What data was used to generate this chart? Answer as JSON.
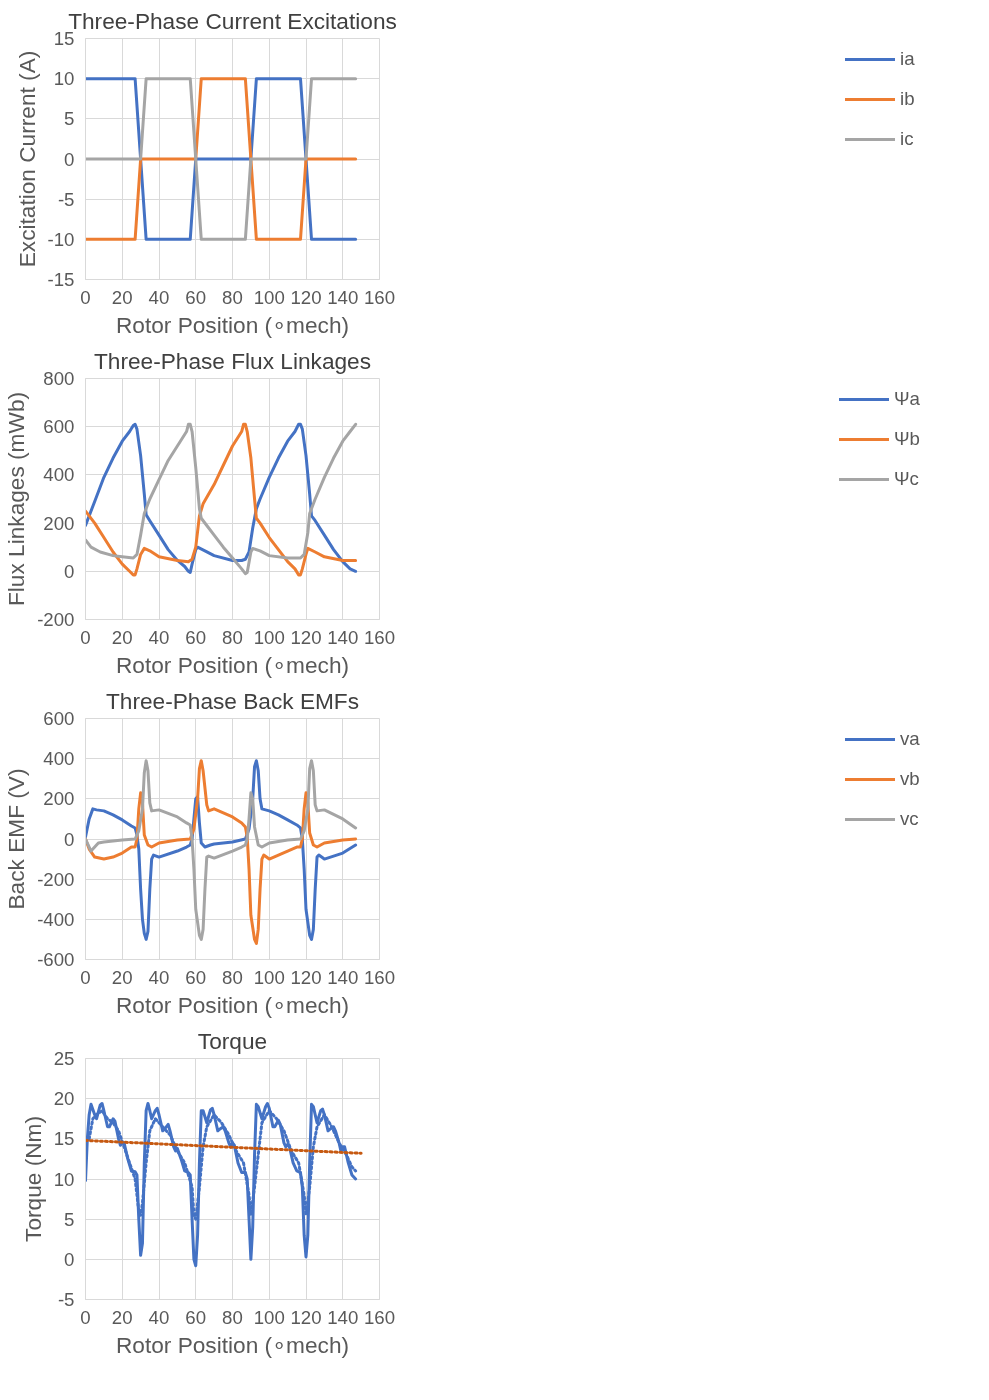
{
  "chart_data": [
    {
      "type": "line",
      "title": "Three-Phase Current Excitations",
      "xlabel": "Rotor Position (∘mech)",
      "ylabel": "Excitation Current (A)",
      "xlim": [
        0,
        160
      ],
      "xticks": [
        0,
        20,
        40,
        60,
        80,
        100,
        120,
        140,
        160
      ],
      "ylim": [
        -15,
        15
      ],
      "yticks": [
        -15,
        -10,
        -5,
        0,
        5,
        10,
        15
      ],
      "grid": true,
      "legend": "right",
      "series": [
        {
          "name": "ia",
          "color": "#4472c4",
          "x": [
            0,
            27,
            33,
            57,
            60,
            90,
            93,
            117,
            123,
            147
          ],
          "values": [
            10,
            10,
            -10,
            -10,
            0,
            0,
            10,
            10,
            -10,
            -10
          ]
        },
        {
          "name": "ib",
          "color": "#ed7d31",
          "x": [
            0,
            27,
            30,
            60,
            63,
            87,
            93,
            117,
            120,
            147
          ],
          "values": [
            -10,
            -10,
            0,
            0,
            10,
            10,
            -10,
            -10,
            0,
            0
          ]
        },
        {
          "name": "ic",
          "color": "#a5a5a5",
          "x": [
            0,
            30,
            33,
            57,
            63,
            87,
            90,
            120,
            123,
            147
          ],
          "values": [
            0,
            0,
            10,
            10,
            -10,
            -10,
            0,
            0,
            10,
            10
          ]
        }
      ]
    },
    {
      "type": "line",
      "title": "Three-Phase Flux Linkages",
      "xlabel": "Rotor Position (∘mech)",
      "ylabel": "Flux Linkages (mWb)",
      "xlim": [
        0,
        160
      ],
      "xticks": [
        0,
        20,
        40,
        60,
        80,
        100,
        120,
        140,
        160
      ],
      "ylim": [
        -200,
        800
      ],
      "yticks": [
        -200,
        0,
        200,
        400,
        600,
        800
      ],
      "grid": true,
      "legend": "right",
      "series": [
        {
          "name": "Ψa",
          "color": "#4472c4",
          "x": [
            0,
            5,
            10,
            15,
            20,
            24,
            26,
            27,
            28,
            30,
            32,
            33,
            35,
            40,
            45,
            50,
            54,
            56,
            57,
            58,
            60,
            61,
            65,
            70,
            80,
            85,
            87,
            89,
            91,
            93,
            95,
            100,
            105,
            110,
            114,
            116,
            117,
            118,
            120,
            122,
            123,
            125,
            130,
            135,
            140,
            144,
            147
          ],
          "values": [
            190,
            290,
            390,
            470,
            540,
            580,
            605,
            610,
            590,
            480,
            320,
            235,
            210,
            150,
            90,
            45,
            20,
            0,
            -5,
            30,
            90,
            100,
            85,
            65,
            45,
            45,
            50,
            80,
            180,
            260,
            300,
            390,
            470,
            540,
            580,
            610,
            610,
            590,
            480,
            320,
            230,
            210,
            150,
            90,
            40,
            10,
            0
          ]
        },
        {
          "name": "Ψb",
          "color": "#ed7d31",
          "x": [
            0,
            5,
            10,
            15,
            20,
            24,
            26,
            27,
            28,
            30,
            32,
            35,
            40,
            50,
            56,
            58,
            60,
            62,
            64,
            70,
            75,
            80,
            85,
            86,
            87,
            88,
            90,
            92,
            93,
            95,
            100,
            105,
            110,
            114,
            116,
            117,
            118,
            120,
            121,
            125,
            130,
            140,
            147
          ],
          "values": [
            250,
            200,
            140,
            80,
            30,
            0,
            -15,
            -15,
            10,
            70,
            95,
            85,
            60,
            45,
            40,
            50,
            100,
            230,
            280,
            360,
            440,
            520,
            580,
            610,
            610,
            580,
            470,
            300,
            220,
            200,
            140,
            90,
            40,
            10,
            -15,
            -15,
            10,
            70,
            95,
            80,
            60,
            45,
            45
          ]
        },
        {
          "name": "Ψc",
          "color": "#a5a5a5",
          "x": [
            0,
            3,
            8,
            15,
            20,
            26,
            28,
            30,
            32,
            35,
            40,
            45,
            50,
            55,
            56,
            57,
            58,
            60,
            62,
            63,
            66,
            70,
            75,
            80,
            85,
            87,
            88,
            90,
            91,
            95,
            100,
            110,
            117,
            119,
            121,
            122,
            125,
            130,
            135,
            140,
            144,
            147
          ],
          "values": [
            130,
            100,
            80,
            65,
            60,
            55,
            70,
            150,
            240,
            300,
            380,
            460,
            520,
            580,
            610,
            610,
            580,
            430,
            260,
            220,
            190,
            150,
            100,
            55,
            10,
            -10,
            -5,
            80,
            95,
            85,
            65,
            55,
            55,
            70,
            160,
            240,
            300,
            390,
            470,
            540,
            580,
            610
          ]
        }
      ]
    },
    {
      "type": "line",
      "title": "Three-Phase Back EMFs",
      "xlabel": "Rotor Position (∘mech)",
      "ylabel": "Back EMF (V)",
      "xlim": [
        0,
        160
      ],
      "xticks": [
        0,
        20,
        40,
        60,
        80,
        100,
        120,
        140,
        160
      ],
      "ylim": [
        -600,
        600
      ],
      "yticks": [
        -600,
        -400,
        -200,
        0,
        200,
        400,
        600
      ],
      "grid": true,
      "legend": "right",
      "series": [
        {
          "name": "va",
          "color": "#4472c4",
          "x": [
            0,
            2,
            4,
            6,
            10,
            15,
            20,
            25,
            27,
            28,
            29,
            30,
            31,
            32,
            33,
            34,
            35,
            36,
            37,
            40,
            50,
            55,
            57,
            58,
            59,
            60,
            61,
            62,
            63,
            65,
            68,
            70,
            80,
            87,
            89,
            91,
            92,
            93,
            94,
            95,
            96,
            100,
            105,
            110,
            115,
            117,
            118,
            119,
            120,
            122,
            123,
            124,
            125,
            126,
            127,
            130,
            140,
            147
          ],
          "values": [
            10,
            100,
            150,
            145,
            140,
            120,
            95,
            65,
            55,
            20,
            -50,
            -250,
            -400,
            -470,
            -500,
            -460,
            -250,
            -100,
            -80,
            -90,
            -60,
            -40,
            -30,
            0,
            100,
            200,
            210,
            80,
            -20,
            -40,
            -30,
            -25,
            -15,
            0,
            50,
            200,
            360,
            390,
            340,
            200,
            150,
            140,
            120,
            95,
            70,
            55,
            0,
            -150,
            -350,
            -480,
            -500,
            -450,
            -250,
            -90,
            -80,
            -100,
            -70,
            -30
          ]
        },
        {
          "name": "vb",
          "color": "#ed7d31",
          "x": [
            0,
            2,
            5,
            10,
            15,
            20,
            25,
            27,
            28,
            29,
            30,
            31,
            32,
            34,
            36,
            40,
            50,
            57,
            59,
            61,
            62,
            63,
            64,
            66,
            67,
            70,
            80,
            85,
            87,
            88,
            89,
            90,
            92,
            93,
            94,
            95,
            96,
            97,
            100,
            110,
            115,
            117,
            118,
            119,
            120,
            121,
            122,
            124,
            126,
            130,
            140,
            147
          ],
          "values": [
            0,
            -50,
            -90,
            -100,
            -90,
            -70,
            -40,
            -40,
            0,
            150,
            230,
            180,
            20,
            -30,
            -40,
            -20,
            -5,
            0,
            50,
            200,
            350,
            390,
            340,
            170,
            140,
            150,
            110,
            80,
            60,
            10,
            -150,
            -380,
            -500,
            -520,
            -450,
            -250,
            -100,
            -80,
            -100,
            -60,
            -40,
            -40,
            0,
            150,
            230,
            180,
            30,
            -30,
            -40,
            -20,
            -5,
            0
          ]
        },
        {
          "name": "vc",
          "color": "#a5a5a5",
          "x": [
            0,
            3,
            5,
            7,
            10,
            20,
            27,
            29,
            31,
            32,
            33,
            34,
            35,
            36,
            40,
            50,
            55,
            57,
            58,
            59,
            60,
            62,
            63,
            64,
            65,
            66,
            67,
            70,
            80,
            85,
            87,
            88,
            89,
            90,
            91,
            92,
            94,
            96,
            100,
            110,
            117,
            119,
            121,
            122,
            123,
            124,
            125,
            126,
            130,
            140,
            147
          ],
          "values": [
            0,
            -60,
            -40,
            -20,
            -15,
            -5,
            0,
            40,
            150,
            330,
            390,
            340,
            180,
            140,
            145,
            110,
            80,
            70,
            0,
            -150,
            -350,
            -480,
            -500,
            -450,
            -250,
            -90,
            -85,
            -95,
            -60,
            -40,
            -30,
            0,
            100,
            230,
            200,
            60,
            -30,
            -40,
            -20,
            -5,
            0,
            40,
            150,
            350,
            390,
            340,
            170,
            140,
            145,
            100,
            55
          ]
        }
      ]
    },
    {
      "type": "line",
      "title": "Torque",
      "xlabel": "Rotor Position (∘mech)",
      "ylabel": "Torque (Nm)",
      "xlim": [
        0,
        160
      ],
      "xticks": [
        0,
        20,
        40,
        60,
        80,
        100,
        120,
        140,
        160
      ],
      "ylim": [
        -5,
        25
      ],
      "yticks": [
        -5,
        0,
        5,
        10,
        15,
        20,
        25
      ],
      "grid": true,
      "legend": false,
      "series": [
        {
          "color": "#4472c4",
          "line_style": "solid",
          "x": [
            0,
            1,
            2,
            3,
            5,
            6,
            8,
            9,
            10,
            12,
            13,
            15,
            16,
            18,
            19,
            20,
            21,
            23,
            25,
            27,
            28,
            29,
            30,
            31,
            32,
            33,
            34,
            35,
            36,
            38,
            39,
            40,
            42,
            43,
            45,
            46,
            48,
            49,
            50,
            52,
            54,
            56,
            57,
            58,
            59,
            60,
            61,
            62,
            63,
            64,
            66,
            68,
            69,
            70,
            72,
            73,
            75,
            76,
            78,
            79,
            80,
            81,
            83,
            85,
            87,
            88,
            89,
            90,
            91,
            92,
            93,
            94,
            96,
            98,
            99,
            100,
            102,
            103,
            105,
            106,
            108,
            109,
            110,
            111,
            113,
            115,
            117,
            118,
            119,
            120,
            121,
            122,
            123,
            124,
            126,
            128,
            129,
            130,
            132,
            133,
            135,
            136,
            138,
            139,
            140,
            141,
            143,
            145,
            147
          ],
          "values": [
            9.8,
            15,
            18,
            19.3,
            18,
            17.5,
            19.2,
            19.4,
            18.5,
            16.5,
            16.5,
            17.5,
            17.2,
            15,
            14.2,
            14.5,
            14.5,
            12.5,
            11,
            10.9,
            10.5,
            5,
            0.5,
            2,
            12,
            18.5,
            19.4,
            18.5,
            17.5,
            18.5,
            18.8,
            18,
            16,
            16.2,
            16.8,
            16,
            14,
            13.5,
            13.8,
            12.5,
            11,
            10.8,
            10.5,
            5,
            0,
            -0.8,
            3,
            12,
            18.5,
            18.5,
            17,
            18.6,
            18.8,
            18,
            16,
            16.2,
            16.5,
            16,
            14.5,
            14,
            14.5,
            14.2,
            12,
            10.8,
            10.8,
            10,
            5,
            0,
            4,
            13,
            19.3,
            19,
            17.5,
            19,
            19.4,
            18.8,
            16.5,
            16.5,
            17.3,
            16.8,
            14.5,
            14,
            14.3,
            14,
            12,
            11,
            10.8,
            9,
            3,
            0.3,
            3,
            12,
            19.3,
            19,
            17,
            18.5,
            18.7,
            18,
            16,
            16.2,
            16.5,
            16,
            14.5,
            13.5,
            14,
            14,
            12,
            10.5,
            10
          ]
        },
        {
          "color": "#4472c4",
          "line_style": "dotted",
          "x": [
            2,
            4,
            6,
            9,
            12,
            15,
            18,
            21,
            24,
            27,
            29,
            30,
            31,
            33,
            35,
            38,
            42,
            46,
            50,
            54,
            58,
            59,
            60,
            62,
            64,
            66,
            70,
            74,
            78,
            82,
            86,
            89,
            90,
            92,
            94,
            96,
            100,
            104,
            108,
            112,
            116,
            119,
            120,
            122,
            124,
            126,
            130,
            134,
            138,
            142,
            145,
            147
          ],
          "values": [
            15,
            17.5,
            18,
            18.5,
            17.5,
            17,
            16,
            14,
            12,
            10,
            6,
            5.5,
            7,
            12,
            16,
            17.5,
            16.5,
            15.5,
            13.5,
            12,
            9,
            5.5,
            5,
            9,
            14,
            16.5,
            18,
            17,
            15.5,
            13.5,
            12,
            8,
            5.5,
            9,
            13,
            17,
            18.5,
            17.5,
            16,
            13.5,
            12,
            8,
            5.5,
            9,
            14,
            16.5,
            18,
            16.5,
            14.5,
            13,
            11.5,
            11
          ]
        },
        {
          "color": "#c65911",
          "line_style": "dotted",
          "x": [
            0,
            150
          ],
          "values": [
            14.8,
            13.2
          ]
        }
      ]
    }
  ]
}
